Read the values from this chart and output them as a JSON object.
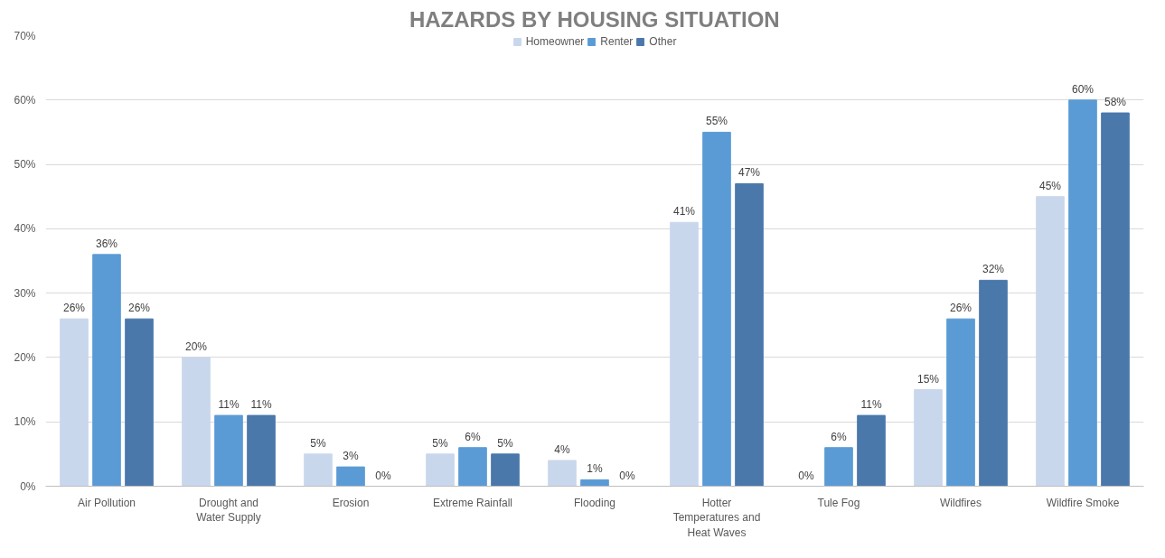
{
  "chart_data": {
    "type": "bar",
    "title": "HAZARDS BY HOUSING SITUATION",
    "categories": [
      "Air Pollution",
      "Drought and Water Supply",
      "Erosion",
      "Extreme Rainfall",
      "Flooding",
      "Hotter Temperatures and Heat Waves",
      "Tule Fog",
      "Wildfires",
      "Wildfire Smoke"
    ],
    "series": [
      {
        "name": "Homeowner",
        "color": "#c9d7ec",
        "values": [
          26,
          20,
          5,
          5,
          4,
          41,
          0,
          15,
          45
        ],
        "value_labels": [
          "26%",
          "20%",
          "5%",
          "5%",
          "4%",
          "41%",
          "0%",
          "15%",
          "45%"
        ]
      },
      {
        "name": "Renter",
        "color": "#5b9bd5",
        "values": [
          36,
          11,
          3,
          6,
          1,
          55,
          6,
          26,
          60
        ],
        "value_labels": [
          "36%",
          "11%",
          "3%",
          "6%",
          "1%",
          "55%",
          "6%",
          "26%",
          "60%"
        ]
      },
      {
        "name": "Other",
        "color": "#4a78ab",
        "values": [
          26,
          11,
          0,
          5,
          0,
          47,
          11,
          32,
          58
        ],
        "value_labels": [
          "26%",
          "11%",
          "0%",
          "5%",
          "0%",
          "47%",
          "11%",
          "32%",
          "58%"
        ]
      }
    ],
    "ylim": [
      0,
      70
    ],
    "yticks": [
      {
        "value": 0,
        "label": "0%"
      },
      {
        "value": 10,
        "label": "10%"
      },
      {
        "value": 20,
        "label": "20%"
      },
      {
        "value": 30,
        "label": "30%"
      },
      {
        "value": 40,
        "label": "40%"
      },
      {
        "value": 50,
        "label": "50%"
      },
      {
        "value": 60,
        "label": "60%"
      },
      {
        "value": 70,
        "label": "70%"
      }
    ],
    "grid": "y",
    "legend": "top"
  }
}
